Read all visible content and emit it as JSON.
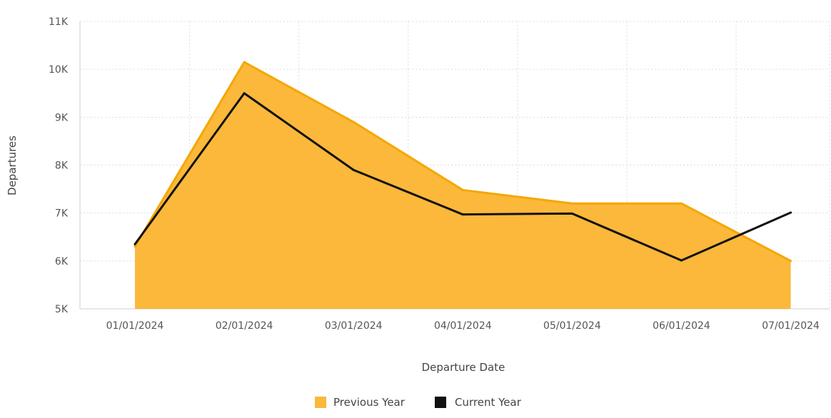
{
  "chart_data": {
    "type": "area",
    "xlabel": "Departure Date",
    "ylabel": "Departures",
    "categories": [
      "01/01/2024",
      "02/01/2024",
      "03/01/2024",
      "04/01/2024",
      "05/01/2024",
      "06/01/2024",
      "07/01/2024"
    ],
    "ylim": [
      5000,
      11000
    ],
    "yticks": [
      5000,
      6000,
      7000,
      8000,
      9000,
      10000,
      11000
    ],
    "ytick_labels": [
      "5K",
      "6K",
      "7K",
      "8K",
      "9K",
      "10K",
      "11K"
    ],
    "grid": true,
    "legend_position": "bottom",
    "series": [
      {
        "name": "Previous Year",
        "type": "area",
        "color": "#FBB83A",
        "line_color": "#F5A700",
        "values": [
          6300,
          10150,
          8900,
          7480,
          7200,
          7200,
          6000
        ]
      },
      {
        "name": "Current Year",
        "type": "line",
        "color": "#111111",
        "values": [
          6350,
          9500,
          7900,
          6970,
          6990,
          6010,
          7010
        ]
      }
    ]
  }
}
